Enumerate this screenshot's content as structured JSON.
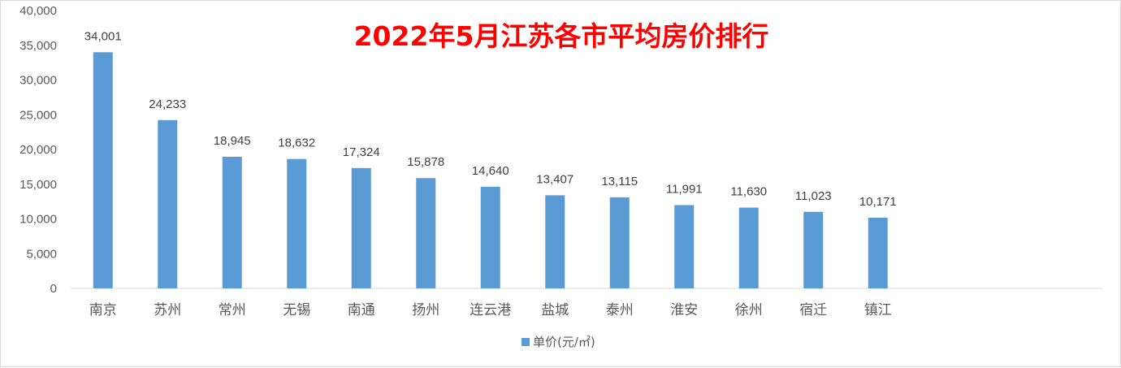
{
  "chart_data": {
    "type": "bar",
    "title": "2022年5月江苏各市平均房价排行",
    "categories": [
      "南京",
      "苏州",
      "常州",
      "无锡",
      "南通",
      "扬州",
      "连云港",
      "盐城",
      "泰州",
      "淮安",
      "徐州",
      "宿迁",
      "镇江"
    ],
    "series": [
      {
        "name": "单价(元/㎡)",
        "values": [
          34001,
          24233,
          18945,
          18632,
          17324,
          15878,
          14640,
          13407,
          13115,
          11991,
          11630,
          11023,
          10171
        ],
        "labels": [
          "34,001",
          "24,233",
          "18,945",
          "18,632",
          "17,324",
          "15,878",
          "14,640",
          "13,407",
          "13,115",
          "11,991",
          "11,630",
          "11,023",
          "10,171"
        ],
        "color": "#5b9bd5"
      }
    ],
    "yticks": [
      "0",
      "5,000",
      "10,000",
      "15,000",
      "20,000",
      "25,000",
      "30,000",
      "35,000",
      "40,000"
    ],
    "ylim": [
      0,
      40000
    ],
    "grid": false,
    "legend": "bottom-center"
  }
}
